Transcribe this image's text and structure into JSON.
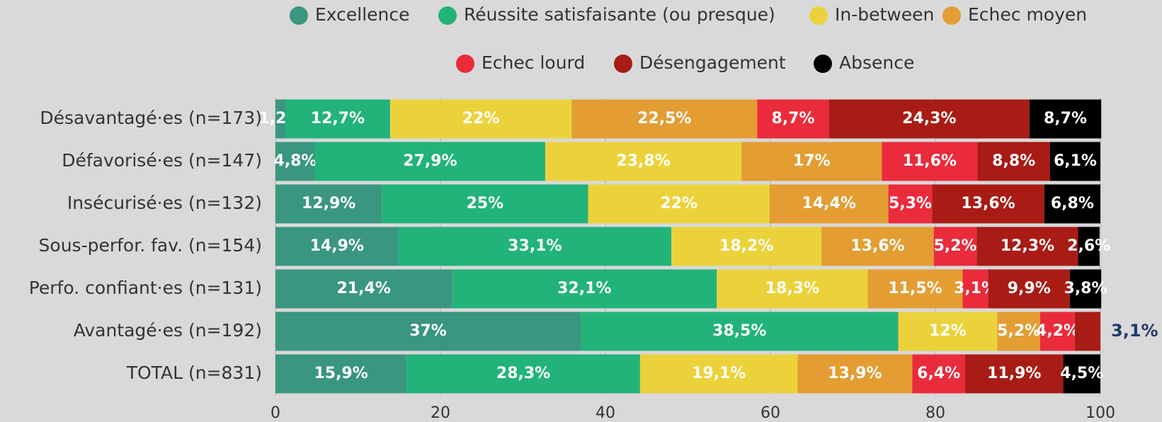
{
  "chart_data": {
    "type": "stacked-bar-horizontal",
    "categories": [
      "Désavantagé·es (n=173)",
      "Défavorisé·es (n=147)",
      "Insécurisé·es (n=132)",
      "Sous-perfor. fav. (n=154)",
      "Perfo. confiant·es (n=131)",
      "Avantagé·es (n=192)",
      "TOTAL (n=831)"
    ],
    "series": [
      {
        "name": "Excellence",
        "color": "#3a9680",
        "values": [
          1.2,
          4.8,
          12.9,
          14.9,
          21.4,
          37,
          15.9
        ],
        "value_labels": [
          "1,2%",
          "4,8%",
          "12,9%",
          "14,9%",
          "21,4%",
          "37%",
          "15,9%"
        ]
      },
      {
        "name": "Réussite satisfaisante (ou presque)",
        "color": "#22b37a",
        "values": [
          12.7,
          27.9,
          25,
          33.1,
          32.1,
          38.5,
          28.3
        ],
        "value_labels": [
          "12,7%",
          "27,9%",
          "25%",
          "33,1%",
          "32,1%",
          "38,5%",
          "28,3%"
        ]
      },
      {
        "name": "In-between",
        "color": "#ecd23a",
        "values": [
          22,
          23.8,
          22,
          18.2,
          18.3,
          12,
          19.1
        ],
        "value_labels": [
          "22%",
          "23,8%",
          "22%",
          "18,2%",
          "18,3%",
          "12%",
          "19,1%"
        ]
      },
      {
        "name": "Echec moyen",
        "color": "#e39d33",
        "values": [
          22.5,
          17,
          14.4,
          13.6,
          11.5,
          5.2,
          13.9
        ],
        "value_labels": [
          "22,5%",
          "17%",
          "14,4%",
          "13,6%",
          "11,5%",
          "5,2%",
          "13,9%"
        ]
      },
      {
        "name": "Echec lourd",
        "color": "#ea2b3c",
        "values": [
          8.7,
          11.6,
          5.3,
          5.2,
          3.1,
          4.2,
          6.4
        ],
        "value_labels": [
          "8,7%",
          "11,6%",
          "5,3%",
          "5,2%",
          "3,1%",
          "4,2%",
          "6,4%"
        ]
      },
      {
        "name": "Désengagement",
        "color": "#a81c15",
        "values": [
          24.3,
          8.8,
          13.6,
          12.3,
          9.9,
          3.1,
          11.9
        ],
        "value_labels": [
          "24,3%",
          "8,8%",
          "13,6%",
          "12,3%",
          "9,9%",
          "3,1%",
          "11,9%"
        ]
      },
      {
        "name": "Absence",
        "color": "#000000",
        "values": [
          8.7,
          6.1,
          6.8,
          2.6,
          3.8,
          null,
          4.5
        ],
        "value_labels": [
          "8,7%",
          "6,1%",
          "6,8%",
          "2,6%",
          "3,8%",
          null,
          "4,5%"
        ]
      }
    ],
    "xlim": [
      0,
      100
    ],
    "xticks": [
      0,
      20,
      40,
      60,
      80,
      100
    ],
    "grid": true
  }
}
